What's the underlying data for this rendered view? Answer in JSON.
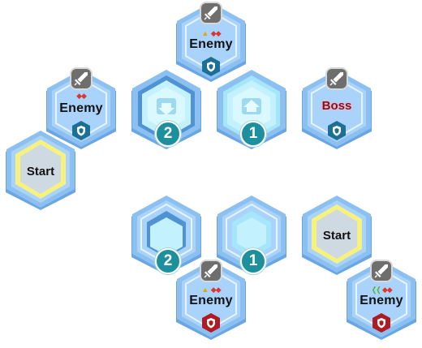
{
  "colors": {
    "hex_outer": "#7fb3ea",
    "hex_fill": "#a9d3fb",
    "hex_inner": "#d7ecff",
    "start_ring": "#f7f27e",
    "portal_fill": "#c3f1fd",
    "badge_blue": "#1c6f95",
    "badge_red": "#b01a22",
    "number_badge": "#1e8f9c"
  },
  "icons": {
    "enemy_top": "sword-icon",
    "enemy_bottom": "shield-icon",
    "portal_down": "arrow-down-icon",
    "portal_up": "arrow-up-icon",
    "warning": "warning-icon",
    "difficulty": "diamond-icon",
    "advantage": "chevron-icon"
  },
  "board_top": {
    "enemy_top": {
      "label": "Enemy",
      "shield": "blue",
      "markers": [
        "warning",
        "diamond",
        "diamond"
      ]
    },
    "enemy_left": {
      "label": "Enemy",
      "shield": "blue",
      "markers": [
        "diamond",
        "diamond"
      ]
    },
    "portal_down": {
      "number": "2"
    },
    "portal_up": {
      "number": "1"
    },
    "boss": {
      "label": "Boss",
      "shield": "blue"
    },
    "start": {
      "label": "Start"
    }
  },
  "board_bottom": {
    "portal_2": {
      "number": "2"
    },
    "portal_1": {
      "number": "1"
    },
    "start": {
      "label": "Start"
    },
    "enemy_mid": {
      "label": "Enemy",
      "shield": "red",
      "markers": [
        "warning",
        "diamond",
        "diamond"
      ]
    },
    "enemy_right": {
      "label": "Enemy",
      "shield": "red",
      "markers": [
        "chevron",
        "diamond",
        "diamond"
      ]
    }
  }
}
